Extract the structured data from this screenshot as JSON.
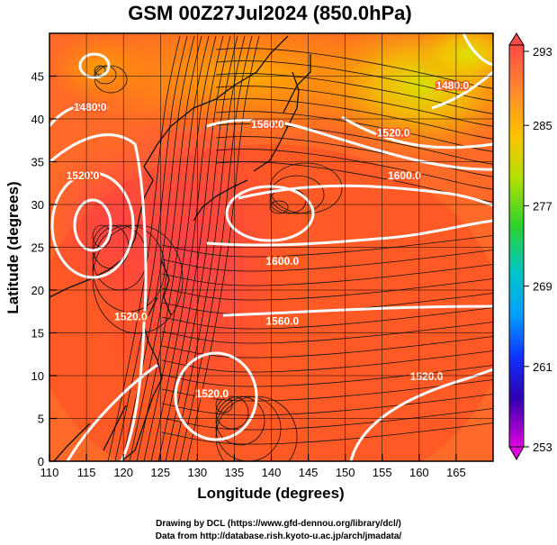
{
  "chart_data": {
    "type": "heatmap",
    "title": "GSM 00Z27Jul2024 (850.0hPa)",
    "xlabel": "Longitude (degrees)",
    "ylabel": "Latitude (degrees)",
    "xlim": [
      110,
      170
    ],
    "ylim": [
      0,
      50
    ],
    "xticks": [
      "110",
      "115",
      "120",
      "125",
      "130",
      "135",
      "140",
      "145",
      "150",
      "155",
      "160",
      "165"
    ],
    "yticks": [
      "0",
      "5",
      "10",
      "15",
      "20",
      "25",
      "30",
      "35",
      "40",
      "45"
    ],
    "colorbar": {
      "min": 253,
      "max": 293,
      "tick_labels": [
        "293",
        "285",
        "277",
        "269",
        "261",
        "253"
      ],
      "tick_values": [
        293,
        285,
        277,
        269,
        261,
        253
      ]
    },
    "field": "temperature (K) shaded, geopotential height contours, wind streamlines",
    "contours": [
      {
        "label": "1480.0",
        "value": 1480,
        "lon": 115.5,
        "lat": 41.5
      },
      {
        "label": "1520.0",
        "value": 1520,
        "lon": 114.5,
        "lat": 33.5
      },
      {
        "label": "1560.0",
        "value": 1560,
        "lon": 139.5,
        "lat": 39.5
      },
      {
        "label": "1520.0",
        "value": 1520,
        "lon": 156.5,
        "lat": 38.5
      },
      {
        "label": "1480.0",
        "value": 1480,
        "lon": 164.5,
        "lat": 44
      },
      {
        "label": "1600.0",
        "value": 1600,
        "lon": 158,
        "lat": 33.5
      },
      {
        "label": "1600.0",
        "value": 1600,
        "lon": 141.5,
        "lat": 23.5
      },
      {
        "label": "1560.0",
        "value": 1560,
        "lon": 141.5,
        "lat": 16.5
      },
      {
        "label": "1520.0",
        "value": 1520,
        "lon": 121,
        "lat": 17
      },
      {
        "label": "1520.0",
        "value": 1520,
        "lon": 132,
        "lat": 8
      },
      {
        "label": "1520.0",
        "value": 1520,
        "lon": 161,
        "lat": 10
      }
    ],
    "grid": true
  },
  "credits": {
    "line1": "Drawing by DCL (https://www.gfd-dennou.org/library/dcl/)",
    "line2": "Data from http://database.rish.kyoto-u.ac.jp/arch/jmadata/"
  }
}
